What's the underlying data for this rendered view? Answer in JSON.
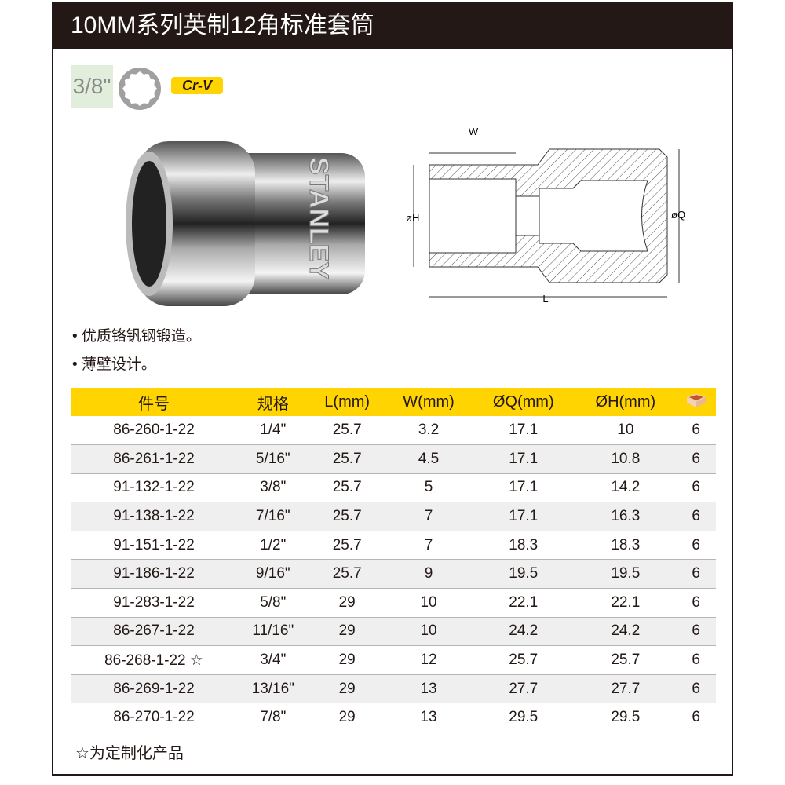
{
  "title": "10MM系列英制12角标准套筒",
  "drive_size": "3/8\"",
  "material_badge": "Cr-V",
  "photo": {
    "brand_text": "STANLEY"
  },
  "diagram": {
    "label_w": "W",
    "label_h": "øH",
    "label_q": "øQ",
    "label_l": "L"
  },
  "features": [
    "• 优质铬钒钢锻造。",
    "• 薄壁设计。"
  ],
  "table": {
    "headers": [
      "件号",
      "规格",
      "L(mm)",
      "W(mm)",
      "ØQ(mm)",
      "ØH(mm)"
    ],
    "pack_icon": "box-icon",
    "rows": [
      [
        "86-260-1-22",
        "1/4\"",
        "25.7",
        "3.2",
        "17.1",
        "10",
        "6"
      ],
      [
        "86-261-1-22",
        "5/16\"",
        "25.7",
        "4.5",
        "17.1",
        "10.8",
        "6"
      ],
      [
        "91-132-1-22",
        "3/8\"",
        "25.7",
        "5",
        "17.1",
        "14.2",
        "6"
      ],
      [
        "91-138-1-22",
        "7/16\"",
        "25.7",
        "7",
        "17.1",
        "16.3",
        "6"
      ],
      [
        "91-151-1-22",
        "1/2\"",
        "25.7",
        "7",
        "18.3",
        "18.3",
        "6"
      ],
      [
        "91-186-1-22",
        "9/16\"",
        "25.7",
        "9",
        "19.5",
        "19.5",
        "6"
      ],
      [
        "91-283-1-22",
        "5/8\"",
        "29",
        "10",
        "22.1",
        "22.1",
        "6"
      ],
      [
        "86-267-1-22",
        "11/16\"",
        "29",
        "10",
        "24.2",
        "24.2",
        "6"
      ],
      [
        "86-268-1-22 ☆",
        "3/4\"",
        "29",
        "12",
        "25.7",
        "25.7",
        "6"
      ],
      [
        "86-269-1-22",
        "13/16\"",
        "29",
        "13",
        "27.7",
        "27.7",
        "6"
      ],
      [
        "86-270-1-22",
        "7/8\"",
        "29",
        "13",
        "29.5",
        "29.5",
        "6"
      ]
    ]
  },
  "note": "☆为定制化产品",
  "colors": {
    "header_bg": "#231815",
    "accent": "#ffd400"
  }
}
